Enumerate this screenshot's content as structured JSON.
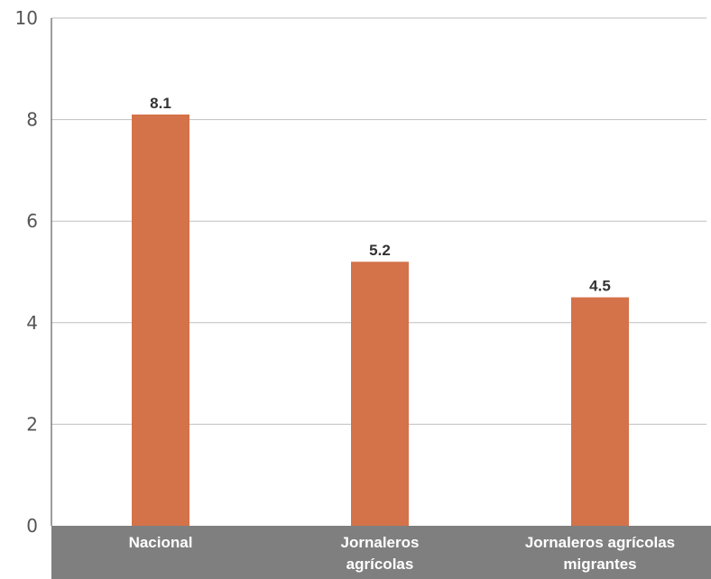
{
  "colors": {
    "bar": "#D4724A",
    "category_band": "#7F7F7F",
    "grid": "#BFBFBF",
    "axis": "#7F7F7F"
  },
  "chart_data": {
    "type": "bar",
    "categories": [
      [
        "Nacional"
      ],
      [
        "Jornaleros",
        "agrícolas"
      ],
      [
        "Jornaleros agrícolas",
        "migrantes"
      ]
    ],
    "values": [
      8.1,
      5.2,
      4.5
    ],
    "data_labels": [
      "8.1",
      "5.2",
      "4.5"
    ],
    "ylim": [
      0,
      10
    ],
    "yticks": [
      0,
      2,
      4,
      6,
      8,
      10
    ],
    "grid": true
  }
}
